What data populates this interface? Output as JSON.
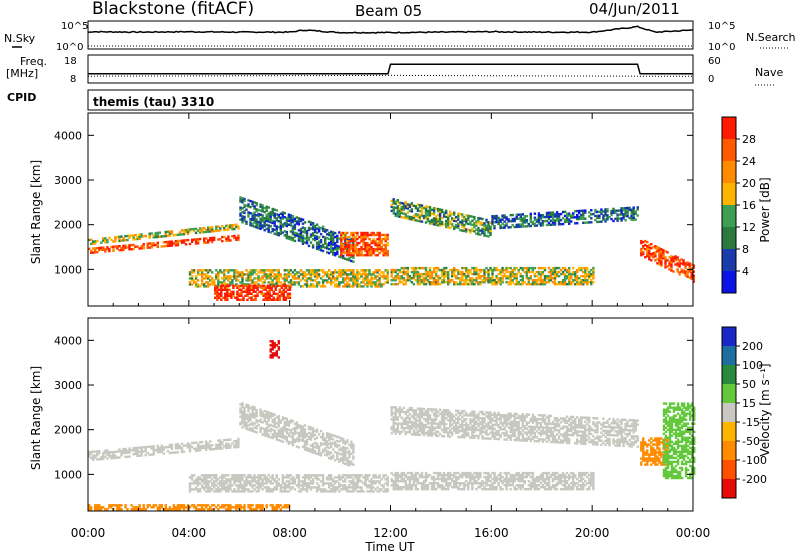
{
  "header": {
    "station": "Blackstone (fitACF)",
    "beam": "Beam 05",
    "date": "04/Jun/2011"
  },
  "top_panels": {
    "nsky_label": "N.Sky",
    "nsearch_label": "N.Search",
    "noise_ticks": [
      "10^5",
      "10^0"
    ],
    "freq_label": "Freq.",
    "freq_unit": "[MHz]",
    "freq_ticks": [
      "18",
      "8"
    ],
    "nave_label": "Nave",
    "nave_ticks": [
      "60",
      "0"
    ],
    "cpid_label": "CPID",
    "cpid_value": "themis (tau) 3310"
  },
  "power_panel": {
    "ylabel": "Slant Range [km]",
    "yticks": [
      "4000",
      "3000",
      "2000",
      "1000"
    ],
    "colorbar_label": "Power [dB]",
    "colorbar_ticks": [
      "28",
      "24",
      "20",
      "16",
      "12",
      "8",
      "4"
    ],
    "colorbar_colors": [
      "#ff1a00",
      "#ff5a00",
      "#ff8c00",
      "#ffb400",
      "#3ca050",
      "#2a7a40",
      "#1a3caa",
      "#0a14e6"
    ]
  },
  "velocity_panel": {
    "ylabel": "Slant Range [km]",
    "yticks": [
      "4000",
      "3000",
      "2000",
      "1000"
    ],
    "colorbar_label": "Velocity [m s⁻¹]",
    "colorbar_ticks": [
      "200",
      "100",
      "50",
      "15",
      "-15",
      "-50",
      "-100",
      "-200"
    ],
    "colorbar_colors": [
      "#1a28c8",
      "#1e6ea0",
      "#2a8a3c",
      "#64c83c",
      "#c8c8c0",
      "#ffb400",
      "#ff8c00",
      "#ff5000",
      "#e60a0a"
    ]
  },
  "xaxis": {
    "label": "Time UT",
    "ticks": [
      "00:00",
      "04:00",
      "08:00",
      "12:00",
      "16:00",
      "20:00",
      "00:00"
    ]
  },
  "chart_data": [
    {
      "type": "line",
      "panel": "noise",
      "series": [
        {
          "name": "N.Sky",
          "x_hours": [
            0.0,
            0.1,
            2.0,
            4.0,
            6.0,
            8.0,
            8.6,
            10.0,
            12.0,
            14.0,
            16.0,
            18.0,
            20.0,
            21.8,
            22.5,
            24.0
          ],
          "y": [
            3.2,
            3.4,
            3.3,
            3.4,
            3.3,
            3.3,
            3.8,
            3.2,
            3.2,
            3.3,
            3.4,
            3.3,
            3.3,
            4.6,
            3.3,
            3.8
          ]
        },
        {
          "name": "N.Search",
          "x_hours": [
            0,
            24
          ],
          "y": [
            0.0,
            0.0
          ]
        }
      ],
      "ylim": [
        0,
        5
      ],
      "yscale": "log10"
    },
    {
      "type": "line",
      "panel": "frequency",
      "series": [
        {
          "name": "Freq.",
          "x_hours": [
            0.0,
            11.9,
            12.0,
            21.8,
            21.9,
            24.0
          ],
          "y": [
            11.0,
            11.0,
            15.0,
            15.0,
            11.0,
            11.0
          ]
        },
        {
          "name": "Nave",
          "x_hours": [
            0.0,
            12.0,
            21.9,
            24.0
          ],
          "y": [
            12,
            14,
            12,
            12
          ]
        }
      ],
      "ylim_freq": [
        8,
        18
      ],
      "ylim_nave": [
        0,
        60
      ]
    },
    {
      "type": "heatmap",
      "panel": "power",
      "xlim_hours": [
        0,
        24
      ],
      "ylim_km": [
        180,
        4500
      ],
      "colorbar_range_db": [
        0,
        30
      ],
      "bands": [
        {
          "t0": 0.0,
          "t1": 6.0,
          "r0": 1350,
          "r1": 1450,
          "drift": 300,
          "db": 26
        },
        {
          "t0": 0.0,
          "t1": 6.0,
          "r0": 1550,
          "r1": 1650,
          "drift": 350,
          "db": 16
        },
        {
          "t0": 6.0,
          "t1": 10.5,
          "r0": 2050,
          "r1": 2600,
          "drift": -900,
          "db": 8
        },
        {
          "t0": 10.0,
          "t1": 11.9,
          "r0": 1800,
          "r1": 1300,
          "drift": 0,
          "db": 24
        },
        {
          "t0": 4.0,
          "t1": 11.9,
          "r0": 600,
          "r1": 1000,
          "drift": 0,
          "db": 16
        },
        {
          "t0": 5.0,
          "t1": 8.0,
          "r0": 300,
          "r1": 650,
          "drift": 0,
          "db": 28
        },
        {
          "t0": 12.0,
          "t1": 16.0,
          "r0": 2200,
          "r1": 2600,
          "drift": -500,
          "db": 12
        },
        {
          "t0": 16.0,
          "t1": 21.8,
          "r0": 1900,
          "r1": 2200,
          "drift": 200,
          "db": 8
        },
        {
          "t0": 12.0,
          "t1": 20.0,
          "r0": 650,
          "r1": 1050,
          "drift": 0,
          "db": 16
        },
        {
          "t0": 21.9,
          "t1": 24.0,
          "r0": 1300,
          "r1": 1700,
          "drift": -600,
          "db": 26
        }
      ]
    },
    {
      "type": "heatmap",
      "panel": "velocity",
      "xlim_hours": [
        0,
        24
      ],
      "ylim_km": [
        180,
        4500
      ],
      "colorbar_range_ms": [
        -250,
        250
      ],
      "bands": [
        {
          "t0": 0.0,
          "t1": 6.0,
          "r0": 1300,
          "r1": 1500,
          "drift": 300,
          "v": 0
        },
        {
          "t0": 6.0,
          "t1": 10.5,
          "r0": 2050,
          "r1": 2600,
          "drift": -900,
          "v": 0
        },
        {
          "t0": 4.0,
          "t1": 11.9,
          "r0": 600,
          "r1": 1000,
          "drift": 0,
          "v": 0
        },
        {
          "t0": 12.0,
          "t1": 21.8,
          "r0": 1900,
          "r1": 2500,
          "drift": -300,
          "v": 0
        },
        {
          "t0": 12.0,
          "t1": 20.0,
          "r0": 650,
          "r1": 1050,
          "drift": 0,
          "v": 0
        },
        {
          "t0": 0.0,
          "t1": 8.0,
          "r0": 200,
          "r1": 330,
          "drift": 0,
          "v": -80
        },
        {
          "t0": 21.9,
          "t1": 23.0,
          "r0": 1200,
          "r1": 1800,
          "drift": 0,
          "v": -60
        },
        {
          "t0": 22.8,
          "t1": 24.0,
          "r0": 900,
          "r1": 2600,
          "drift": 0,
          "v": 40
        },
        {
          "t0": 7.2,
          "t1": 7.6,
          "r0": 3600,
          "r1": 4000,
          "drift": 0,
          "v": -220
        }
      ]
    }
  ]
}
